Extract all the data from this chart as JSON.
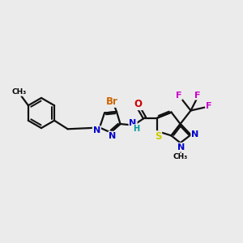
{
  "background_color": "#ebebeb",
  "atom_colors": {
    "Br": "#cc6600",
    "O": "#cc0000",
    "N": "#0000cc",
    "S": "#cccc00",
    "F": "#cc00cc",
    "H": "#009999",
    "C": "#000000"
  },
  "bond_color": "#111111",
  "bond_width": 1.6
}
